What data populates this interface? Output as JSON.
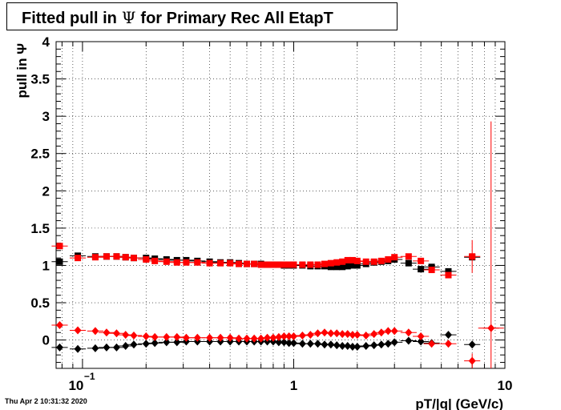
{
  "title": {
    "pre": "Fitted pull in",
    "symbol": "Ψ",
    "post": "for Primary Rec All EtapT"
  },
  "timestamp": "Thu Apr  2 10:31:32 2020",
  "chart_data": {
    "type": "scatter",
    "title": "Fitted pull in Ψ for Primary Rec All EtapT",
    "xlabel": "pT/|q| (GeV/c)",
    "ylabel": "pull in Ψ",
    "xscale": "log",
    "xlim": [
      0.075,
      10
    ],
    "ylim": [
      -0.38,
      4.0
    ],
    "grid": true,
    "yticks": [
      "0",
      "0.5",
      "1",
      "1.5",
      "2",
      "2.5",
      "3",
      "3.5",
      "4"
    ],
    "xticks": [
      {
        "label": "10",
        "sup": "−1",
        "value": 0.1
      },
      {
        "label": "1",
        "sup": "",
        "value": 1
      },
      {
        "label": "10",
        "sup": "",
        "value": 10
      }
    ],
    "series": [
      {
        "color": "#000000",
        "marker": "square",
        "points": [
          [
            0.078,
            1.05
          ],
          [
            0.095,
            1.13
          ],
          [
            0.115,
            1.12
          ],
          [
            0.13,
            1.12
          ],
          [
            0.145,
            1.12
          ],
          [
            0.16,
            1.11
          ],
          [
            0.175,
            1.1
          ],
          [
            0.2,
            1.1
          ],
          [
            0.22,
            1.09
          ],
          [
            0.25,
            1.08
          ],
          [
            0.28,
            1.07
          ],
          [
            0.31,
            1.07
          ],
          [
            0.35,
            1.06
          ],
          [
            0.4,
            1.05
          ],
          [
            0.45,
            1.04
          ],
          [
            0.5,
            1.04
          ],
          [
            0.55,
            1.03
          ],
          [
            0.6,
            1.02
          ],
          [
            0.65,
            1.02
          ],
          [
            0.7,
            1.02
          ],
          [
            0.75,
            1.01
          ],
          [
            0.8,
            1.01
          ],
          [
            0.85,
            1.01
          ],
          [
            0.9,
            1.0
          ],
          [
            0.95,
            1.0
          ],
          [
            1.0,
            1.0
          ],
          [
            1.1,
            1.0
          ],
          [
            1.2,
            0.99
          ],
          [
            1.3,
            0.99
          ],
          [
            1.4,
            0.99
          ],
          [
            1.5,
            0.98
          ],
          [
            1.6,
            0.98
          ],
          [
            1.7,
            0.98
          ],
          [
            1.8,
            0.99
          ],
          [
            1.9,
            1.0
          ],
          [
            2.0,
            1.0
          ],
          [
            2.2,
            1.02
          ],
          [
            2.4,
            1.04
          ],
          [
            2.6,
            1.05
          ],
          [
            2.8,
            1.06
          ],
          [
            3.0,
            1.08
          ],
          [
            3.5,
            1.03
          ],
          [
            4.0,
            0.95
          ],
          [
            4.5,
            0.98
          ],
          [
            5.4,
            0.92
          ],
          [
            7.0,
            1.11
          ]
        ]
      },
      {
        "color": "#ff0000",
        "marker": "square",
        "points": [
          [
            0.078,
            1.26
          ],
          [
            0.095,
            1.1
          ],
          [
            0.115,
            1.11
          ],
          [
            0.13,
            1.12
          ],
          [
            0.145,
            1.12
          ],
          [
            0.16,
            1.11
          ],
          [
            0.175,
            1.1
          ],
          [
            0.2,
            1.08
          ],
          [
            0.22,
            1.06
          ],
          [
            0.25,
            1.05
          ],
          [
            0.28,
            1.04
          ],
          [
            0.31,
            1.04
          ],
          [
            0.35,
            1.04
          ],
          [
            0.4,
            1.03
          ],
          [
            0.45,
            1.03
          ],
          [
            0.5,
            1.03
          ],
          [
            0.55,
            1.02
          ],
          [
            0.6,
            1.02
          ],
          [
            0.65,
            1.02
          ],
          [
            0.7,
            1.01
          ],
          [
            0.75,
            1.01
          ],
          [
            0.8,
            1.01
          ],
          [
            0.85,
            1.01
          ],
          [
            0.9,
            1.01
          ],
          [
            0.95,
            1.01
          ],
          [
            1.0,
            1.01
          ],
          [
            1.1,
            1.01
          ],
          [
            1.2,
            1.01
          ],
          [
            1.3,
            1.01
          ],
          [
            1.4,
            1.02
          ],
          [
            1.5,
            1.03
          ],
          [
            1.6,
            1.04
          ],
          [
            1.7,
            1.05
          ],
          [
            1.8,
            1.07
          ],
          [
            1.9,
            1.07
          ],
          [
            2.0,
            1.06
          ],
          [
            2.2,
            1.05
          ],
          [
            2.4,
            1.05
          ],
          [
            2.6,
            1.06
          ],
          [
            2.8,
            1.08
          ],
          [
            3.0,
            1.11
          ],
          [
            3.5,
            1.12
          ],
          [
            4.0,
            1.06
          ],
          [
            4.5,
            0.94
          ],
          [
            5.4,
            0.87
          ],
          [
            7.0,
            1.12
          ]
        ]
      },
      {
        "color": "#000000",
        "marker": "diamond",
        "points": [
          [
            0.078,
            -0.1
          ],
          [
            0.095,
            -0.12
          ],
          [
            0.115,
            -0.11
          ],
          [
            0.13,
            -0.1
          ],
          [
            0.145,
            -0.1
          ],
          [
            0.16,
            -0.08
          ],
          [
            0.175,
            -0.06
          ],
          [
            0.2,
            -0.05
          ],
          [
            0.22,
            -0.04
          ],
          [
            0.25,
            -0.03
          ],
          [
            0.28,
            -0.03
          ],
          [
            0.31,
            -0.02
          ],
          [
            0.35,
            -0.02
          ],
          [
            0.4,
            -0.02
          ],
          [
            0.45,
            -0.02
          ],
          [
            0.5,
            -0.02
          ],
          [
            0.55,
            -0.02
          ],
          [
            0.6,
            -0.02
          ],
          [
            0.65,
            -0.02
          ],
          [
            0.7,
            -0.02
          ],
          [
            0.75,
            -0.02
          ],
          [
            0.8,
            -0.02
          ],
          [
            0.85,
            -0.03
          ],
          [
            0.9,
            -0.03
          ],
          [
            0.95,
            -0.04
          ],
          [
            1.0,
            -0.04
          ],
          [
            1.1,
            -0.05
          ],
          [
            1.2,
            -0.05
          ],
          [
            1.3,
            -0.05
          ],
          [
            1.4,
            -0.06
          ],
          [
            1.5,
            -0.06
          ],
          [
            1.6,
            -0.07
          ],
          [
            1.7,
            -0.08
          ],
          [
            1.8,
            -0.08
          ],
          [
            1.9,
            -0.09
          ],
          [
            2.0,
            -0.09
          ],
          [
            2.2,
            -0.08
          ],
          [
            2.4,
            -0.07
          ],
          [
            2.6,
            -0.06
          ],
          [
            2.8,
            -0.05
          ],
          [
            3.0,
            -0.03
          ],
          [
            3.5,
            -0.01
          ],
          [
            4.0,
            -0.02
          ],
          [
            4.5,
            -0.04
          ],
          [
            5.4,
            0.07
          ],
          [
            7.0,
            -0.06
          ]
        ]
      },
      {
        "color": "#ff0000",
        "marker": "diamond",
        "points": [
          [
            0.078,
            0.2
          ],
          [
            0.095,
            0.13
          ],
          [
            0.115,
            0.12
          ],
          [
            0.13,
            0.1
          ],
          [
            0.145,
            0.09
          ],
          [
            0.16,
            0.07
          ],
          [
            0.175,
            0.06
          ],
          [
            0.2,
            0.05
          ],
          [
            0.22,
            0.04
          ],
          [
            0.25,
            0.04
          ],
          [
            0.28,
            0.04
          ],
          [
            0.31,
            0.03
          ],
          [
            0.35,
            0.03
          ],
          [
            0.4,
            0.03
          ],
          [
            0.45,
            0.03
          ],
          [
            0.5,
            0.03
          ],
          [
            0.55,
            0.02
          ],
          [
            0.6,
            0.02
          ],
          [
            0.65,
            0.02
          ],
          [
            0.7,
            0.02
          ],
          [
            0.75,
            0.03
          ],
          [
            0.8,
            0.03
          ],
          [
            0.85,
            0.04
          ],
          [
            0.9,
            0.05
          ],
          [
            0.95,
            0.05
          ],
          [
            1.0,
            0.05
          ],
          [
            1.1,
            0.06
          ],
          [
            1.2,
            0.07
          ],
          [
            1.3,
            0.09
          ],
          [
            1.4,
            0.1
          ],
          [
            1.5,
            0.09
          ],
          [
            1.6,
            0.09
          ],
          [
            1.7,
            0.08
          ],
          [
            1.8,
            0.08
          ],
          [
            1.9,
            0.07
          ],
          [
            2.0,
            0.07
          ],
          [
            2.2,
            0.06
          ],
          [
            2.4,
            0.08
          ],
          [
            2.6,
            0.1
          ],
          [
            2.8,
            0.12
          ],
          [
            3.0,
            0.12
          ],
          [
            3.5,
            0.1
          ],
          [
            4.0,
            0.05
          ],
          [
            4.5,
            -0.05
          ],
          [
            5.4,
            -0.05
          ],
          [
            7.0,
            -0.28
          ],
          [
            8.6,
            0.16
          ]
        ]
      }
    ]
  }
}
